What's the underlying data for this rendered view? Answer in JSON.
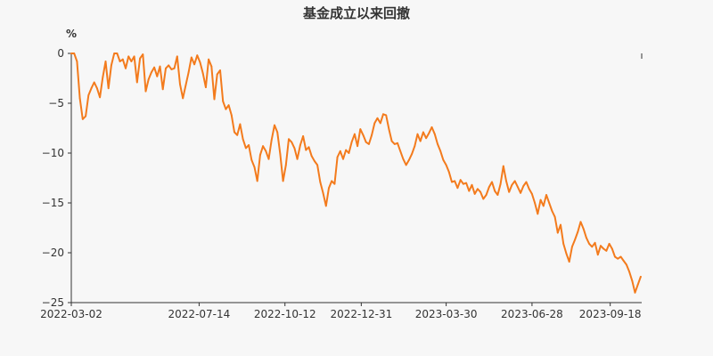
{
  "chart_data": {
    "type": "line",
    "title": "基金成立以来回撤",
    "subtitle": "",
    "xlabel": "",
    "ylabel": "%",
    "x_ticks": [
      "2022-03-02",
      "2022-07-14",
      "2022-10-12",
      "2022-12-31",
      "2023-03-30",
      "2023-06-28",
      "2023-09-18"
    ],
    "y_ticks": [
      0,
      -5,
      -10,
      -15,
      -20,
      -25
    ],
    "ylim": [
      -25,
      0
    ],
    "xlim": [
      "2022-03-02",
      "2023-10-21"
    ],
    "grid": false,
    "legend": "none",
    "series": [
      {
        "color": "#f37b1d",
        "x": [
          "2022-03-02",
          "2022-03-05",
          "2022-03-08",
          "2022-03-11",
          "2022-03-14",
          "2022-03-17",
          "2022-03-20",
          "2022-03-23",
          "2022-03-26",
          "2022-03-29",
          "2022-04-01",
          "2022-04-04",
          "2022-04-07",
          "2022-04-10",
          "2022-04-13",
          "2022-04-16",
          "2022-04-19",
          "2022-04-22",
          "2022-04-25",
          "2022-04-28",
          "2022-05-01",
          "2022-05-04",
          "2022-05-07",
          "2022-05-10",
          "2022-05-13",
          "2022-05-16",
          "2022-05-19",
          "2022-05-22",
          "2022-05-25",
          "2022-05-28",
          "2022-05-31",
          "2022-06-03",
          "2022-06-06",
          "2022-06-09",
          "2022-06-12",
          "2022-06-15",
          "2022-06-18",
          "2022-06-21",
          "2022-06-24",
          "2022-06-27",
          "2022-06-30",
          "2022-07-03",
          "2022-07-06",
          "2022-07-09",
          "2022-07-12",
          "2022-07-15",
          "2022-07-18",
          "2022-07-21",
          "2022-07-24",
          "2022-07-27",
          "2022-07-30",
          "2022-08-02",
          "2022-08-05",
          "2022-08-08",
          "2022-08-11",
          "2022-08-14",
          "2022-08-17",
          "2022-08-20",
          "2022-08-23",
          "2022-08-26",
          "2022-08-29",
          "2022-09-01",
          "2022-09-04",
          "2022-09-07",
          "2022-09-10",
          "2022-09-13",
          "2022-09-16",
          "2022-09-19",
          "2022-09-22",
          "2022-09-25",
          "2022-09-28",
          "2022-10-01",
          "2022-10-04",
          "2022-10-07",
          "2022-10-10",
          "2022-10-13",
          "2022-10-16",
          "2022-10-19",
          "2022-10-22",
          "2022-10-25",
          "2022-10-28",
          "2022-10-31",
          "2022-11-03",
          "2022-11-06",
          "2022-11-09",
          "2022-11-12",
          "2022-11-15",
          "2022-11-18",
          "2022-11-21",
          "2022-11-24",
          "2022-11-27",
          "2022-11-30",
          "2022-12-03",
          "2022-12-06",
          "2022-12-09",
          "2022-12-12",
          "2022-12-15",
          "2022-12-18",
          "2022-12-21",
          "2022-12-24",
          "2022-12-27",
          "2022-12-30",
          "2023-01-02",
          "2023-01-05",
          "2023-01-08",
          "2023-01-11",
          "2023-01-14",
          "2023-01-17",
          "2023-01-20",
          "2023-01-23",
          "2023-01-26",
          "2023-01-29",
          "2023-02-01",
          "2023-02-04",
          "2023-02-07",
          "2023-02-10",
          "2023-02-13",
          "2023-02-16",
          "2023-02-19",
          "2023-02-22",
          "2023-02-25",
          "2023-02-28",
          "2023-03-03",
          "2023-03-06",
          "2023-03-09",
          "2023-03-12",
          "2023-03-15",
          "2023-03-18",
          "2023-03-21",
          "2023-03-24",
          "2023-03-27",
          "2023-03-30",
          "2023-04-02",
          "2023-04-05",
          "2023-04-08",
          "2023-04-11",
          "2023-04-14",
          "2023-04-17",
          "2023-04-20",
          "2023-04-23",
          "2023-04-26",
          "2023-04-29",
          "2023-05-02",
          "2023-05-05",
          "2023-05-08",
          "2023-05-11",
          "2023-05-14",
          "2023-05-17",
          "2023-05-20",
          "2023-05-23",
          "2023-05-26",
          "2023-05-29",
          "2023-06-01",
          "2023-06-04",
          "2023-06-07",
          "2023-06-10",
          "2023-06-13",
          "2023-06-16",
          "2023-06-19",
          "2023-06-22",
          "2023-06-25",
          "2023-06-28",
          "2023-07-01",
          "2023-07-04",
          "2023-07-07",
          "2023-07-10",
          "2023-07-13",
          "2023-07-16",
          "2023-07-19",
          "2023-07-22",
          "2023-07-25",
          "2023-07-28",
          "2023-07-31",
          "2023-08-03",
          "2023-08-06",
          "2023-08-09",
          "2023-08-12",
          "2023-08-15",
          "2023-08-18",
          "2023-08-21",
          "2023-08-24",
          "2023-08-27",
          "2023-08-30",
          "2023-09-02",
          "2023-09-05",
          "2023-09-08",
          "2023-09-11",
          "2023-09-14",
          "2023-09-17",
          "2023-09-20",
          "2023-09-23",
          "2023-09-26",
          "2023-09-29",
          "2023-10-02",
          "2023-10-05",
          "2023-10-08",
          "2023-10-11",
          "2023-10-14",
          "2023-10-17",
          "2023-10-20"
        ],
        "values": [
          0,
          0,
          -0.8,
          -4.5,
          -6.6,
          -6.3,
          -4.2,
          -3.5,
          -2.9,
          -3.5,
          -4.4,
          -2.4,
          -0.8,
          -3.5,
          -1.2,
          0,
          0,
          -0.8,
          -0.6,
          -1.5,
          -0.3,
          -0.8,
          -0.3,
          -2.9,
          -0.5,
          -0.1,
          -3.8,
          -2.6,
          -1.9,
          -1.4,
          -2.3,
          -1.3,
          -3.6,
          -1.5,
          -1.2,
          -1.6,
          -1.5,
          -0.3,
          -3.1,
          -4.5,
          -3.2,
          -1.9,
          -0.4,
          -1.1,
          -0.2,
          -0.9,
          -2.0,
          -3.4,
          -0.6,
          -1.3,
          -4.6,
          -2.1,
          -1.7,
          -4.8,
          -5.6,
          -5.2,
          -6.2,
          -7.9,
          -8.2,
          -7.1,
          -8.6,
          -9.5,
          -9.2,
          -10.7,
          -11.4,
          -12.8,
          -10.2,
          -9.3,
          -9.8,
          -10.6,
          -8.7,
          -7.2,
          -7.9,
          -10.1,
          -12.8,
          -11.2,
          -8.6,
          -8.9,
          -9.5,
          -10.6,
          -9.2,
          -8.3,
          -9.7,
          -9.4,
          -10.3,
          -10.8,
          -11.2,
          -12.9,
          -14.0,
          -15.3,
          -13.5,
          -12.8,
          -13.1,
          -10.4,
          -9.8,
          -10.6,
          -9.7,
          -10.0,
          -8.9,
          -8.1,
          -9.3,
          -7.6,
          -8.2,
          -8.9,
          -9.1,
          -8.2,
          -7.0,
          -6.5,
          -7.0,
          -6.1,
          -6.2,
          -7.6,
          -8.8,
          -9.1,
          -9.0,
          -9.8,
          -10.6,
          -11.2,
          -10.7,
          -10.1,
          -9.3,
          -8.1,
          -8.8,
          -7.9,
          -8.5,
          -8.0,
          -7.4,
          -8.1,
          -9.1,
          -9.8,
          -10.7,
          -11.2,
          -11.9,
          -12.9,
          -12.8,
          -13.5,
          -12.7,
          -13.1,
          -13.0,
          -13.8,
          -13.2,
          -14.1,
          -13.6,
          -13.9,
          -14.6,
          -14.2,
          -13.4,
          -12.9,
          -13.8,
          -14.2,
          -13.1,
          -11.3,
          -12.8,
          -13.9,
          -13.2,
          -12.8,
          -13.4,
          -14.0,
          -13.3,
          -12.9,
          -13.6,
          -14.1,
          -15.0,
          -16.1,
          -14.7,
          -15.3,
          -14.2,
          -15.0,
          -15.8,
          -16.4,
          -18.0,
          -17.2,
          -19.1,
          -20.1,
          -20.9,
          -19.4,
          -18.7,
          -17.9,
          -16.9,
          -17.6,
          -18.5,
          -19.1,
          -19.4,
          -19.0,
          -20.2,
          -19.3,
          -19.6,
          -19.8,
          -19.1,
          -19.6,
          -20.4,
          -20.6,
          -20.4,
          -20.8,
          -21.2,
          -21.9,
          -22.8,
          -24.0,
          -23.2,
          -22.4
        ]
      }
    ]
  }
}
